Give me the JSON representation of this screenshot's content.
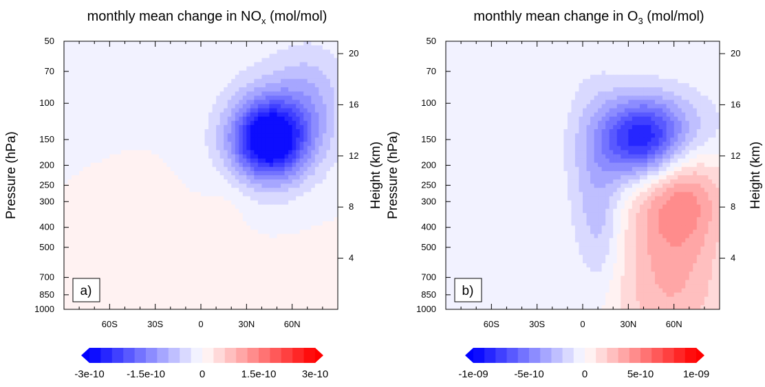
{
  "chart_data": [
    {
      "type": "heatmap",
      "panel_label": "a)",
      "title": {
        "prefix": "monthly mean change in NO",
        "sub": "x",
        "suffix": " (mol/mol)"
      },
      "ylabel": "Pressure (hPa)",
      "y2label": "Height (km)",
      "xticks": [
        {
          "v": -60,
          "label": "60S"
        },
        {
          "v": -30,
          "label": "30S"
        },
        {
          "v": 0,
          "label": "0"
        },
        {
          "v": 30,
          "label": "30N"
        },
        {
          "v": 60,
          "label": "60N"
        }
      ],
      "xlim": [
        -90,
        90
      ],
      "yticks": [
        50,
        70,
        100,
        150,
        200,
        250,
        300,
        400,
        500,
        700,
        850,
        1000
      ],
      "ylim": [
        1000,
        50
      ],
      "yscale": "log",
      "y2ticks": [
        4,
        8,
        12,
        16,
        20
      ],
      "colorbar": {
        "min": -3e-10,
        "max": 3e-10,
        "tick_values": [
          -3e-10,
          -1.5e-10,
          0,
          1.5e-10,
          3e-10
        ],
        "tick_labels": [
          "-3e-10",
          "-1.5e-10",
          "0",
          "1.5e-10",
          "3e-10"
        ]
      },
      "background_value": -2.5e-12,
      "features": [
        {
          "lat": 45,
          "p": 150,
          "slat": 16,
          "slnp": 0.28,
          "value": -2.7e-10
        },
        {
          "lat": 60,
          "p": 120,
          "slat": 22,
          "slnp": 0.45,
          "value": -8e-11
        },
        {
          "lat": 35,
          "p": 165,
          "slat": 22,
          "slnp": 0.5,
          "value": -5.5e-11
        },
        {
          "lat": 75,
          "p": 85,
          "slat": 15,
          "slnp": 0.4,
          "value": -3.5e-11
        },
        {
          "lat": 5,
          "p": 800,
          "slat": 70,
          "slnp": 0.9,
          "value": 1.5e-11
        },
        {
          "lat": 20,
          "p": 280,
          "slat": 12,
          "slnp": 0.28,
          "value": 2e-11
        }
      ]
    },
    {
      "type": "heatmap",
      "panel_label": "b)",
      "title": {
        "prefix": "monthly mean change in O",
        "sub": "3",
        "suffix": " (mol/mol)"
      },
      "ylabel": "Pressure (hPa)",
      "y2label": "Height (km)",
      "xticks": [
        {
          "v": -60,
          "label": "60S"
        },
        {
          "v": -30,
          "label": "30S"
        },
        {
          "v": 0,
          "label": "0"
        },
        {
          "v": 30,
          "label": "30N"
        },
        {
          "v": 60,
          "label": "60N"
        }
      ],
      "xlim": [
        -90,
        90
      ],
      "yticks": [
        50,
        70,
        100,
        150,
        200,
        250,
        300,
        400,
        500,
        700,
        850,
        1000
      ],
      "ylim": [
        1000,
        50
      ],
      "yscale": "log",
      "y2ticks": [
        4,
        8,
        12,
        16,
        20
      ],
      "colorbar": {
        "min": -1e-09,
        "max": 1e-09,
        "tick_values": [
          -1e-09,
          -5e-10,
          0,
          5e-10,
          1e-09
        ],
        "tick_labels": [
          "-1e-09",
          "-5e-10",
          "0",
          "5e-10",
          "1e-09"
        ]
      },
      "background_value": -8e-12,
      "features": [
        {
          "lat": 38,
          "p": 150,
          "slat": 18,
          "slnp": 0.32,
          "value": -7.5e-10
        },
        {
          "lat": 60,
          "p": 140,
          "slat": 25,
          "slnp": 0.35,
          "value": -3e-10
        },
        {
          "lat": 8,
          "p": 200,
          "slat": 14,
          "slnp": 0.7,
          "value": -2.2e-10
        },
        {
          "lat": 12,
          "p": 450,
          "slat": 10,
          "slnp": 0.5,
          "value": -1.5e-10
        },
        {
          "lat": 65,
          "p": 280,
          "slat": 20,
          "slnp": 0.45,
          "value": 3.5e-10
        },
        {
          "lat": 55,
          "p": 500,
          "slat": 28,
          "slnp": 0.8,
          "value": 2.2e-10
        },
        {
          "lat": 60,
          "p": 900,
          "slat": 25,
          "slnp": 0.4,
          "value": 1.2e-10
        }
      ]
    }
  ]
}
